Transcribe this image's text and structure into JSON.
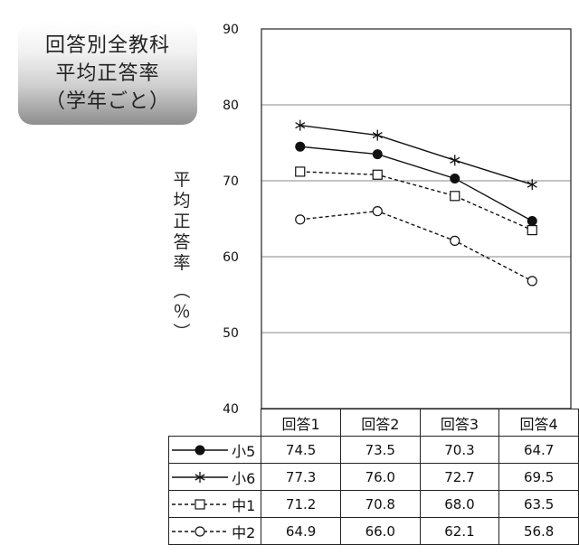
{
  "title_lines": [
    "回答別全教科",
    "平均正答率",
    "（学年ごと）"
  ],
  "chart_data": {
    "type": "line",
    "categories": [
      "回答1",
      "回答2",
      "回答3",
      "回答4"
    ],
    "ylim": [
      40,
      90
    ],
    "yticks": [
      "40",
      "50",
      "60",
      "70",
      "80",
      "90"
    ],
    "ylabel": "平均正答率（％）",
    "series": [
      {
        "name": "小5",
        "marker": "filled-circle",
        "dash": "solid",
        "values": [
          74.5,
          73.5,
          70.3,
          64.7
        ],
        "display": [
          "74.5",
          "73.5",
          "70.3",
          "64.7"
        ]
      },
      {
        "name": "小6",
        "marker": "asterisk",
        "dash": "solid",
        "values": [
          77.3,
          76.0,
          72.7,
          69.5
        ],
        "display": [
          "77.3",
          "76.0",
          "72.7",
          "69.5"
        ]
      },
      {
        "name": "中1",
        "marker": "open-square",
        "dash": "dashed",
        "values": [
          71.2,
          70.8,
          68.0,
          63.5
        ],
        "display": [
          "71.2",
          "70.8",
          "68.0",
          "63.5"
        ]
      },
      {
        "name": "中2",
        "marker": "open-circle",
        "dash": "dashed",
        "values": [
          64.9,
          66.0,
          62.1,
          56.8
        ],
        "display": [
          "64.9",
          "66.0",
          "62.1",
          "56.8"
        ]
      }
    ],
    "grid": true
  }
}
